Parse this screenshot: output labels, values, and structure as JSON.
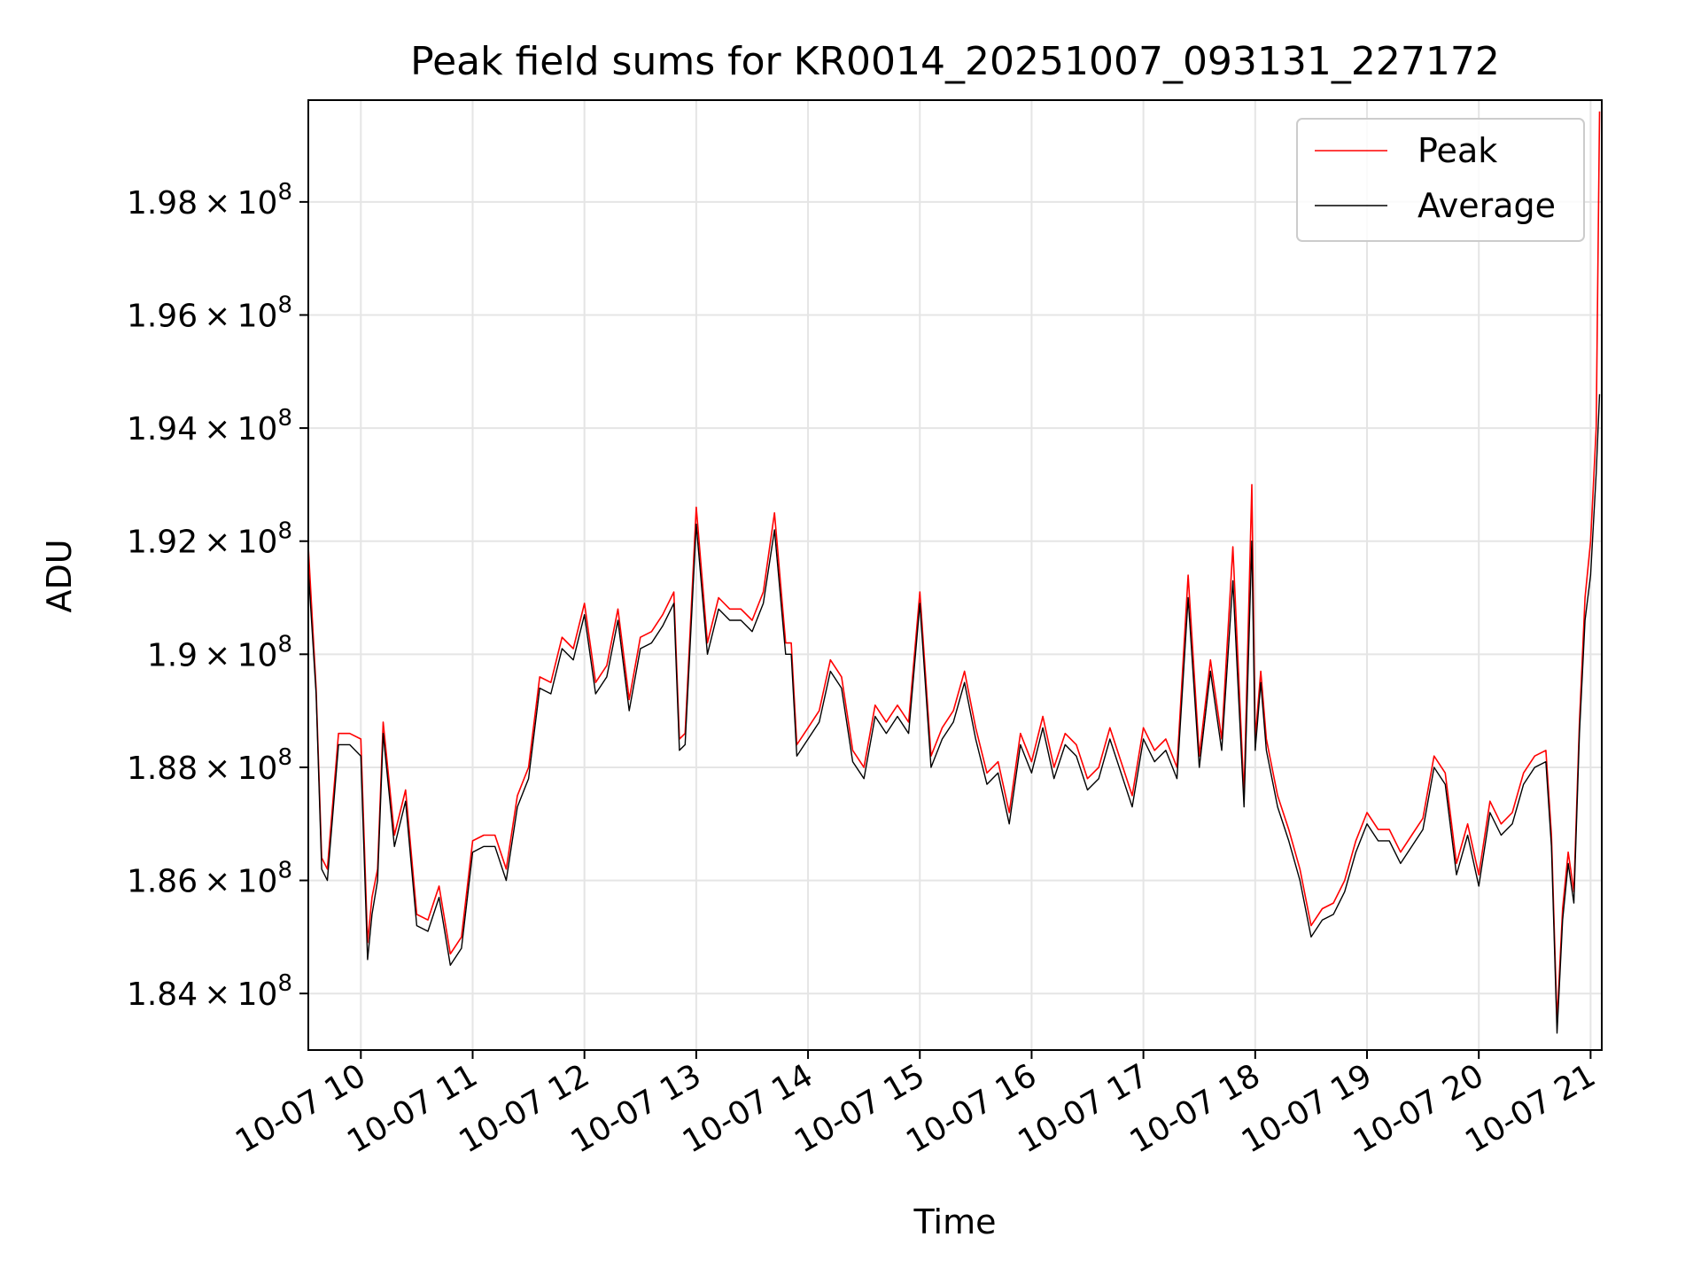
{
  "chart_data": {
    "type": "line",
    "title": "Peak field sums for KR0014_20251007_093131_227172",
    "xlabel": "Time",
    "ylabel": "ADU",
    "grid": true,
    "legend_position": "top-right",
    "x_unit": "hour of 2025-10-07",
    "xlim": [
      9.53,
      21.1
    ],
    "ylim": [
      183000000,
      199800000
    ],
    "x_ticks": [
      {
        "value": 10,
        "label": "10-07 10"
      },
      {
        "value": 11,
        "label": "10-07 11"
      },
      {
        "value": 12,
        "label": "10-07 12"
      },
      {
        "value": 13,
        "label": "10-07 13"
      },
      {
        "value": 14,
        "label": "10-07 14"
      },
      {
        "value": 15,
        "label": "10-07 15"
      },
      {
        "value": 16,
        "label": "10-07 16"
      },
      {
        "value": 17,
        "label": "10-07 17"
      },
      {
        "value": 18,
        "label": "10-07 18"
      },
      {
        "value": 19,
        "label": "10-07 19"
      },
      {
        "value": 20,
        "label": "10-07 20"
      },
      {
        "value": 21,
        "label": "10-07 21"
      }
    ],
    "y_ticks": [
      {
        "value": 184000000,
        "mantissa": "1.84",
        "exponent": "8"
      },
      {
        "value": 186000000,
        "mantissa": "1.86",
        "exponent": "8"
      },
      {
        "value": 188000000,
        "mantissa": "1.88",
        "exponent": "8"
      },
      {
        "value": 190000000,
        "mantissa": "1.9",
        "exponent": "8"
      },
      {
        "value": 192000000,
        "mantissa": "1.92",
        "exponent": "8"
      },
      {
        "value": 194000000,
        "mantissa": "1.94",
        "exponent": "8"
      },
      {
        "value": 196000000,
        "mantissa": "1.96",
        "exponent": "8"
      },
      {
        "value": 198000000,
        "mantissa": "1.98",
        "exponent": "8"
      }
    ],
    "y_tick_base": "10",
    "x": [
      9.53,
      9.6,
      9.65,
      9.7,
      9.8,
      9.9,
      10.0,
      10.06,
      10.1,
      10.15,
      10.2,
      10.3,
      10.4,
      10.5,
      10.6,
      10.7,
      10.8,
      10.9,
      11.0,
      11.1,
      11.2,
      11.3,
      11.4,
      11.5,
      11.6,
      11.7,
      11.8,
      11.9,
      12.0,
      12.1,
      12.2,
      12.3,
      12.4,
      12.5,
      12.6,
      12.7,
      12.8,
      12.85,
      12.9,
      13.0,
      13.1,
      13.2,
      13.3,
      13.4,
      13.5,
      13.6,
      13.7,
      13.8,
      13.85,
      13.9,
      14.0,
      14.1,
      14.2,
      14.3,
      14.4,
      14.5,
      14.6,
      14.7,
      14.8,
      14.9,
      15.0,
      15.1,
      15.2,
      15.3,
      15.4,
      15.5,
      15.6,
      15.7,
      15.8,
      15.9,
      16.0,
      16.1,
      16.2,
      16.3,
      16.4,
      16.5,
      16.6,
      16.7,
      16.8,
      16.9,
      17.0,
      17.1,
      17.2,
      17.3,
      17.4,
      17.5,
      17.6,
      17.7,
      17.8,
      17.9,
      17.97,
      18.0,
      18.05,
      18.1,
      18.2,
      18.3,
      18.4,
      18.5,
      18.6,
      18.7,
      18.8,
      18.9,
      19.0,
      19.1,
      19.2,
      19.3,
      19.4,
      19.5,
      19.6,
      19.7,
      19.8,
      19.9,
      20.0,
      20.1,
      20.2,
      20.3,
      20.4,
      20.5,
      20.6,
      20.65,
      20.7,
      20.75,
      20.8,
      20.85,
      20.9,
      20.95,
      21.0,
      21.05,
      21.08
    ],
    "series": [
      {
        "name": "Peak",
        "color": "#ff0000",
        "values": [
          191.9,
          189.4,
          186.4,
          186.2,
          188.6,
          188.6,
          188.5,
          184.9,
          185.7,
          186.2,
          188.8,
          186.8,
          187.6,
          185.4,
          185.3,
          185.9,
          184.7,
          185.0,
          186.7,
          186.8,
          186.8,
          186.2,
          187.5,
          188.0,
          189.6,
          189.5,
          190.3,
          190.1,
          190.9,
          189.5,
          189.8,
          190.8,
          189.2,
          190.3,
          190.4,
          190.7,
          191.1,
          188.5,
          188.6,
          192.6,
          190.2,
          191.0,
          190.8,
          190.8,
          190.6,
          191.1,
          192.5,
          190.2,
          190.2,
          188.4,
          188.7,
          189.0,
          189.9,
          189.6,
          188.3,
          188.0,
          189.1,
          188.8,
          189.1,
          188.8,
          191.1,
          188.2,
          188.7,
          189.0,
          189.7,
          188.7,
          187.9,
          188.1,
          187.2,
          188.6,
          188.1,
          188.9,
          188.0,
          188.6,
          188.4,
          187.8,
          188.0,
          188.7,
          188.1,
          187.5,
          188.7,
          188.3,
          188.5,
          188.0,
          191.4,
          188.2,
          189.9,
          188.5,
          191.9,
          187.5,
          193.0,
          188.5,
          189.7,
          188.5,
          187.5,
          186.9,
          186.2,
          185.2,
          185.5,
          185.6,
          186.0,
          186.7,
          187.2,
          186.9,
          186.9,
          186.5,
          186.8,
          187.1,
          188.2,
          187.9,
          186.3,
          187.0,
          186.1,
          187.4,
          187.0,
          187.2,
          187.9,
          188.2,
          188.3,
          186.8,
          183.5,
          185.5,
          186.5,
          185.8,
          188.8,
          191.0,
          192.0,
          194.0,
          199.6
        ]
      },
      {
        "name": "Average",
        "color": "#000000",
        "values": [
          191.5,
          189.3,
          186.2,
          186.0,
          188.4,
          188.4,
          188.2,
          184.6,
          185.4,
          186.0,
          188.6,
          186.6,
          187.4,
          185.2,
          185.1,
          185.7,
          184.5,
          184.8,
          186.5,
          186.6,
          186.6,
          186.0,
          187.3,
          187.8,
          189.4,
          189.3,
          190.1,
          189.9,
          190.7,
          189.3,
          189.6,
          190.6,
          189.0,
          190.1,
          190.2,
          190.5,
          190.9,
          188.3,
          188.4,
          192.3,
          190.0,
          190.8,
          190.6,
          190.6,
          190.4,
          190.9,
          192.2,
          190.0,
          190.0,
          188.2,
          188.5,
          188.8,
          189.7,
          189.4,
          188.1,
          187.8,
          188.9,
          188.6,
          188.9,
          188.6,
          190.9,
          188.0,
          188.5,
          188.8,
          189.5,
          188.5,
          187.7,
          187.9,
          187.0,
          188.4,
          187.9,
          188.7,
          187.8,
          188.4,
          188.2,
          187.6,
          187.8,
          188.5,
          187.9,
          187.3,
          188.5,
          188.1,
          188.3,
          187.8,
          191.0,
          188.0,
          189.7,
          188.3,
          191.3,
          187.3,
          192.0,
          188.3,
          189.5,
          188.3,
          187.3,
          186.7,
          186.0,
          185.0,
          185.3,
          185.4,
          185.8,
          186.5,
          187.0,
          186.7,
          186.7,
          186.3,
          186.6,
          186.9,
          188.0,
          187.7,
          186.1,
          186.8,
          185.9,
          187.2,
          186.8,
          187.0,
          187.7,
          188.0,
          188.1,
          186.6,
          183.3,
          185.3,
          186.3,
          185.6,
          188.6,
          190.6,
          191.4,
          193.2,
          194.6
        ]
      }
    ],
    "values_scale": 1000000
  }
}
